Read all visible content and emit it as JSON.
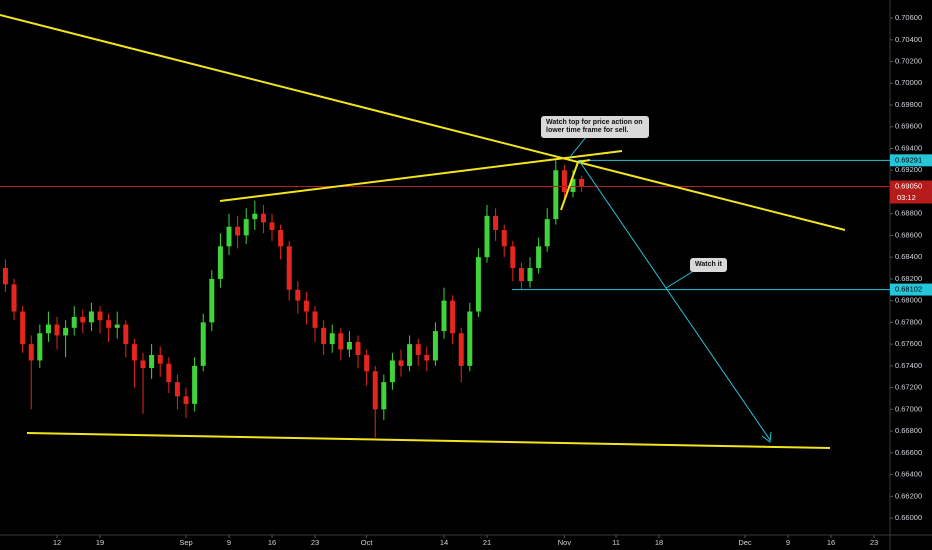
{
  "chart_data": {
    "type": "candlestick",
    "x": [
      -6,
      -5,
      -4,
      -3,
      -2,
      -1,
      0,
      1,
      2,
      3,
      4,
      5,
      6,
      7,
      8,
      9,
      10,
      11,
      12,
      13,
      14,
      15,
      16,
      17,
      18,
      19,
      20,
      21,
      22,
      23,
      24,
      25,
      26,
      27,
      28,
      29,
      30,
      31,
      32,
      33,
      34,
      35,
      36,
      37,
      38,
      39,
      40,
      41,
      42,
      43,
      44,
      45,
      46,
      47,
      48,
      49,
      50,
      51,
      52,
      53,
      54,
      55,
      56,
      57,
      58,
      59,
      60,
      61
    ],
    "open": [
      0.683,
      0.6815,
      0.679,
      0.676,
      0.6745,
      0.677,
      0.6778,
      0.6768,
      0.6775,
      0.6785,
      0.678,
      0.679,
      0.6782,
      0.6775,
      0.6778,
      0.676,
      0.6745,
      0.6738,
      0.675,
      0.6742,
      0.6725,
      0.6712,
      0.6705,
      0.674,
      0.678,
      0.682,
      0.685,
      0.6868,
      0.686,
      0.6875,
      0.688,
      0.6872,
      0.6865,
      0.685,
      0.681,
      0.68,
      0.679,
      0.6775,
      0.676,
      0.677,
      0.6755,
      0.6762,
      0.675,
      0.6735,
      0.67,
      0.6725,
      0.6745,
      0.674,
      0.676,
      0.675,
      0.6745,
      0.6772,
      0.68,
      0.677,
      0.674,
      0.679,
      0.684,
      0.6878,
      0.6865,
      0.685,
      0.683,
      0.6818,
      0.683,
      0.685,
      0.6875,
      0.692,
      0.69,
      0.6912
    ],
    "high": [
      0.6838,
      0.682,
      0.6795,
      0.6768,
      0.6778,
      0.679,
      0.6785,
      0.6782,
      0.6795,
      0.6792,
      0.6798,
      0.6795,
      0.6788,
      0.679,
      0.6782,
      0.6765,
      0.6752,
      0.676,
      0.6758,
      0.6748,
      0.6732,
      0.672,
      0.6748,
      0.6788,
      0.6828,
      0.6862,
      0.688,
      0.6878,
      0.6885,
      0.6892,
      0.6888,
      0.688,
      0.687,
      0.6855,
      0.6818,
      0.6808,
      0.6795,
      0.6782,
      0.6778,
      0.6775,
      0.6772,
      0.6768,
      0.6755,
      0.674,
      0.6732,
      0.6752,
      0.6755,
      0.6768,
      0.6765,
      0.6758,
      0.678,
      0.6812,
      0.6805,
      0.6775,
      0.6798,
      0.6848,
      0.6888,
      0.6885,
      0.687,
      0.6855,
      0.6835,
      0.684,
      0.6858,
      0.6885,
      0.6929,
      0.6925,
      0.692,
      0.6915
    ],
    "low": [
      0.6808,
      0.6782,
      0.6752,
      0.67,
      0.6738,
      0.6762,
      0.6755,
      0.6748,
      0.6768,
      0.677,
      0.6772,
      0.677,
      0.6762,
      0.6765,
      0.6748,
      0.672,
      0.6696,
      0.6728,
      0.673,
      0.6715,
      0.67,
      0.6692,
      0.6698,
      0.6735,
      0.6772,
      0.6812,
      0.6842,
      0.6848,
      0.6852,
      0.6865,
      0.6862,
      0.6855,
      0.6838,
      0.68,
      0.6788,
      0.6778,
      0.6762,
      0.675,
      0.6752,
      0.6745,
      0.6748,
      0.6738,
      0.6722,
      0.6674,
      0.669,
      0.6718,
      0.673,
      0.6735,
      0.674,
      0.6735,
      0.674,
      0.6765,
      0.676,
      0.6725,
      0.6735,
      0.6785,
      0.6835,
      0.6855,
      0.684,
      0.6818,
      0.681,
      0.6812,
      0.6825,
      0.6845,
      0.687,
      0.689,
      0.6895,
      0.69
    ],
    "close": [
      0.6815,
      0.679,
      0.676,
      0.6745,
      0.677,
      0.6778,
      0.6768,
      0.6775,
      0.6785,
      0.678,
      0.679,
      0.6782,
      0.6775,
      0.6778,
      0.676,
      0.6745,
      0.6738,
      0.675,
      0.6742,
      0.6725,
      0.6712,
      0.6705,
      0.674,
      0.678,
      0.682,
      0.685,
      0.6868,
      0.686,
      0.6875,
      0.688,
      0.6872,
      0.6865,
      0.685,
      0.681,
      0.68,
      0.679,
      0.6775,
      0.676,
      0.677,
      0.6755,
      0.6762,
      0.675,
      0.6735,
      0.67,
      0.6725,
      0.6745,
      0.674,
      0.676,
      0.675,
      0.6745,
      0.6772,
      0.68,
      0.677,
      0.674,
      0.679,
      0.684,
      0.6878,
      0.6865,
      0.685,
      0.683,
      0.6818,
      0.683,
      0.685,
      0.6875,
      0.692,
      0.69,
      0.6912,
      0.6905
    ],
    "up_color": "#3fd43c",
    "down_color": "#e5261f",
    "xlim": [
      -6.63,
      96.86
    ],
    "xticks": [
      {
        "value": 0,
        "label": "12"
      },
      {
        "value": 5,
        "label": "19"
      },
      {
        "value": 15,
        "label": "Sep"
      },
      {
        "value": 20,
        "label": "9"
      },
      {
        "value": 25,
        "label": "16"
      },
      {
        "value": 30,
        "label": "23"
      },
      {
        "value": 36,
        "label": "Oct"
      },
      {
        "value": 45,
        "label": "14"
      },
      {
        "value": 50,
        "label": "21"
      },
      {
        "value": 59,
        "label": "Nov"
      },
      {
        "value": 65,
        "label": "11"
      },
      {
        "value": 70,
        "label": "18"
      },
      {
        "value": 80,
        "label": "Dec"
      },
      {
        "value": 85,
        "label": "9"
      },
      {
        "value": 90,
        "label": "16"
      },
      {
        "value": 95,
        "label": "23"
      }
    ],
    "ylim": [
      0.65844,
      0.70766
    ],
    "yticks": [
      {
        "value": 0.706,
        "label": "0.70600"
      },
      {
        "value": 0.704,
        "label": "0.70400"
      },
      {
        "value": 0.702,
        "label": "0.70200"
      },
      {
        "value": 0.7,
        "label": "0.70000"
      },
      {
        "value": 0.698,
        "label": "0.69800"
      },
      {
        "value": 0.696,
        "label": "0.69600"
      },
      {
        "value": 0.694,
        "label": "0.69400"
      },
      {
        "value": 0.692,
        "label": "0.69200"
      },
      {
        "value": 0.69,
        "label": "0.69000"
      },
      {
        "value": 0.688,
        "label": "0.68800"
      },
      {
        "value": 0.686,
        "label": "0.68600"
      },
      {
        "value": 0.684,
        "label": "0.68400"
      },
      {
        "value": 0.682,
        "label": "0.68200"
      },
      {
        "value": 0.68,
        "label": "0.68000"
      },
      {
        "value": 0.678,
        "label": "0.67800"
      },
      {
        "value": 0.676,
        "label": "0.67600"
      },
      {
        "value": 0.674,
        "label": "0.67400"
      },
      {
        "value": 0.672,
        "label": "0.67200"
      },
      {
        "value": 0.67,
        "label": "0.67000"
      },
      {
        "value": 0.668,
        "label": "0.66800"
      },
      {
        "value": 0.666,
        "label": "0.66600"
      },
      {
        "value": 0.664,
        "label": "0.66400"
      },
      {
        "value": 0.662,
        "label": "0.66200"
      },
      {
        "value": 0.66,
        "label": "0.66000"
      }
    ],
    "grid": false,
    "levels": [
      {
        "value": 0.69291,
        "label": "0.69291",
        "color": "#26c6da"
      },
      {
        "value": 0.68102,
        "label": "0.68102",
        "color": "#26c6da"
      }
    ],
    "last_price": {
      "value": 0.6905,
      "label": "0.69050",
      "countdown": "03:12",
      "color": "#b71c1c"
    },
    "annotations": [
      "Watch top for price action on lower time frame for sell.",
      "Watch it"
    ]
  }
}
